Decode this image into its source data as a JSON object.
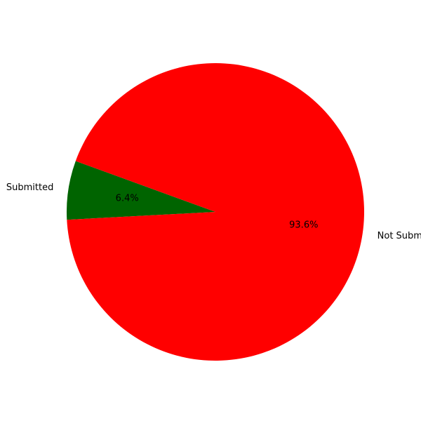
{
  "chart_data": {
    "type": "pie",
    "title": "",
    "slices": [
      {
        "label": "Submitted",
        "value": 6.4,
        "pct_label": "6.4%",
        "color": "#006400"
      },
      {
        "label": "Not Submitted",
        "value": 93.6,
        "pct_label": "93.6%",
        "color": "#ff0000"
      }
    ],
    "start_angle_deg": 160,
    "direction": "counterclockwise",
    "legend": "none"
  }
}
